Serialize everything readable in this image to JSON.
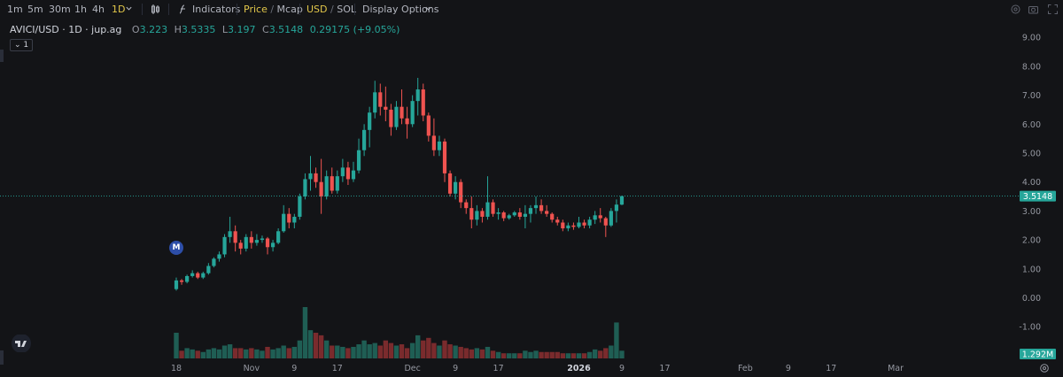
{
  "toolbar": {
    "intervals": [
      "1m",
      "5m",
      "30m",
      "1h",
      "4h",
      "1D"
    ],
    "active_interval": "1D",
    "indicators": "Indicators",
    "price": "Price",
    "mcap": "Mcap",
    "usd": "USD",
    "sol": "SOL",
    "display_options": "Display Options"
  },
  "legend": {
    "symbol": "AVICI/USD · 1D · jup.ag",
    "o_label": "O",
    "o": "3.223",
    "h_label": "H",
    "h": "3.5335",
    "l_label": "L",
    "l": "3.197",
    "c_label": "C",
    "c": "3.5148",
    "change": "0.29175 (+9.05%)",
    "collapse": "1"
  },
  "marker": "M",
  "colors": {
    "up": "#26a69a",
    "down": "#ef5350",
    "vol_up": "#1f5e54",
    "vol_down": "#7a2b2d",
    "bg": "#131417"
  },
  "chart_data": {
    "type": "candlestick",
    "title": "AVICI/USD · 1D · jup.ag",
    "y_ticks": [
      "9.00",
      "8.00",
      "7.00",
      "6.00",
      "5.00",
      "4.00",
      "3.00",
      "2.00",
      "1.00",
      "0.00",
      "-1.00"
    ],
    "ylim": [
      -2,
      10
    ],
    "last_price": "3.5148",
    "volume_label": "1.292M",
    "x_ticks": [
      {
        "label": "18",
        "t": 0
      },
      {
        "label": "Nov",
        "t": 14
      },
      {
        "label": "9",
        "t": 22
      },
      {
        "label": "17",
        "t": 30
      },
      {
        "label": "Dec",
        "t": 44
      },
      {
        "label": "9",
        "t": 52
      },
      {
        "label": "17",
        "t": 60
      },
      {
        "label": "2026",
        "t": 75
      },
      {
        "label": "9",
        "t": 83
      },
      {
        "label": "17",
        "t": 91
      },
      {
        "label": "Feb",
        "t": 106
      },
      {
        "label": "9",
        "t": 114
      },
      {
        "label": "17",
        "t": 122
      },
      {
        "label": "Mar",
        "t": 134
      }
    ],
    "candles": [
      [
        0.3,
        0.7,
        0.25,
        0.6,
        1.0
      ],
      [
        0.6,
        0.65,
        0.45,
        0.55,
        0.3
      ],
      [
        0.55,
        0.8,
        0.5,
        0.75,
        0.4
      ],
      [
        0.75,
        0.95,
        0.7,
        0.85,
        0.35
      ],
      [
        0.85,
        0.9,
        0.65,
        0.7,
        0.3
      ],
      [
        0.7,
        0.9,
        0.65,
        0.85,
        0.25
      ],
      [
        0.85,
        1.2,
        0.8,
        1.1,
        0.35
      ],
      [
        1.1,
        1.4,
        1.05,
        1.35,
        0.4
      ],
      [
        1.35,
        1.6,
        1.25,
        1.5,
        0.35
      ],
      [
        1.5,
        2.2,
        1.4,
        2.1,
        0.5
      ],
      [
        2.1,
        2.8,
        1.9,
        2.3,
        0.55
      ],
      [
        2.3,
        2.5,
        1.6,
        1.9,
        0.4
      ],
      [
        1.9,
        2.0,
        1.5,
        1.7,
        0.4
      ],
      [
        1.7,
        2.2,
        1.6,
        2.1,
        0.35
      ],
      [
        2.1,
        2.3,
        1.7,
        1.9,
        0.4
      ],
      [
        1.9,
        2.2,
        1.8,
        2.0,
        0.35
      ],
      [
        2.0,
        2.15,
        1.9,
        2.05,
        0.3
      ],
      [
        2.05,
        2.1,
        1.5,
        1.75,
        0.45
      ],
      [
        1.75,
        2.0,
        1.6,
        1.9,
        0.35
      ],
      [
        1.9,
        2.4,
        1.85,
        2.3,
        0.4
      ],
      [
        2.3,
        3.2,
        2.25,
        2.9,
        0.5
      ],
      [
        2.9,
        3.1,
        2.4,
        2.6,
        0.4
      ],
      [
        2.6,
        2.9,
        2.4,
        2.8,
        0.45
      ],
      [
        2.8,
        3.6,
        2.7,
        3.5,
        0.7
      ],
      [
        3.5,
        4.3,
        3.4,
        4.1,
        2.0
      ],
      [
        4.1,
        4.9,
        3.7,
        4.3,
        1.1
      ],
      [
        4.3,
        4.5,
        3.8,
        4.0,
        1.0
      ],
      [
        4.0,
        4.8,
        2.9,
        3.5,
        0.9
      ],
      [
        3.5,
        4.4,
        3.4,
        4.2,
        0.7
      ],
      [
        4.2,
        4.5,
        3.6,
        3.7,
        0.5
      ],
      [
        3.7,
        4.4,
        3.6,
        4.2,
        0.5
      ],
      [
        4.2,
        4.8,
        4.0,
        4.5,
        0.45
      ],
      [
        4.5,
        4.7,
        3.9,
        4.1,
        0.4
      ],
      [
        4.1,
        4.7,
        4.0,
        4.4,
        0.45
      ],
      [
        4.4,
        5.5,
        4.3,
        5.1,
        0.55
      ],
      [
        5.1,
        6.0,
        4.9,
        5.8,
        0.7
      ],
      [
        5.8,
        6.6,
        5.2,
        6.4,
        0.55
      ],
      [
        6.4,
        7.5,
        6.2,
        7.1,
        0.6
      ],
      [
        7.1,
        7.4,
        6.3,
        6.6,
        0.5
      ],
      [
        6.6,
        7.3,
        6.1,
        6.5,
        0.7
      ],
      [
        6.5,
        6.7,
        5.6,
        5.9,
        0.6
      ],
      [
        5.9,
        6.8,
        5.8,
        6.6,
        0.5
      ],
      [
        6.6,
        7.2,
        6.0,
        6.2,
        0.55
      ],
      [
        6.2,
        6.6,
        5.5,
        6.0,
        0.4
      ],
      [
        6.0,
        7.0,
        5.9,
        6.8,
        0.6
      ],
      [
        6.8,
        7.6,
        6.3,
        7.2,
        0.9
      ],
      [
        7.2,
        7.4,
        6.1,
        6.3,
        0.7
      ],
      [
        6.3,
        6.4,
        5.4,
        5.6,
        0.8
      ],
      [
        5.6,
        6.2,
        4.9,
        5.1,
        0.6
      ],
      [
        5.1,
        5.6,
        4.9,
        5.4,
        0.5
      ],
      [
        5.4,
        5.5,
        4.0,
        4.3,
        0.7
      ],
      [
        4.3,
        4.4,
        3.5,
        3.6,
        0.55
      ],
      [
        3.6,
        4.2,
        3.4,
        4.0,
        0.5
      ],
      [
        4.0,
        4.1,
        3.1,
        3.3,
        0.45
      ],
      [
        3.3,
        3.4,
        2.9,
        3.1,
        0.4
      ],
      [
        3.1,
        3.5,
        2.4,
        2.7,
        0.35
      ],
      [
        2.7,
        3.2,
        2.5,
        3.0,
        0.4
      ],
      [
        3.0,
        3.1,
        2.6,
        2.8,
        0.35
      ],
      [
        2.8,
        4.2,
        2.7,
        3.3,
        0.45
      ],
      [
        3.3,
        3.4,
        2.8,
        2.9,
        0.3
      ],
      [
        2.9,
        3.1,
        2.7,
        2.95,
        0.25
      ],
      [
        2.95,
        3.0,
        2.65,
        2.75,
        0.2
      ],
      [
        2.75,
        2.9,
        2.7,
        2.85,
        0.2
      ],
      [
        2.85,
        3.0,
        2.8,
        2.95,
        0.2
      ],
      [
        2.95,
        3.1,
        2.7,
        2.8,
        0.2
      ],
      [
        2.8,
        3.2,
        2.4,
        2.9,
        0.3
      ],
      [
        2.9,
        3.2,
        2.6,
        3.1,
        0.25
      ],
      [
        3.1,
        3.5,
        2.9,
        3.2,
        0.3
      ],
      [
        3.2,
        3.4,
        2.9,
        3.0,
        0.25
      ],
      [
        3.0,
        3.2,
        2.8,
        2.9,
        0.25
      ],
      [
        2.9,
        2.95,
        2.6,
        2.7,
        0.25
      ],
      [
        2.7,
        2.8,
        2.5,
        2.6,
        0.25
      ],
      [
        2.6,
        2.7,
        2.3,
        2.4,
        0.2
      ],
      [
        2.4,
        2.6,
        2.3,
        2.5,
        0.2
      ],
      [
        2.5,
        2.6,
        2.35,
        2.45,
        0.2
      ],
      [
        2.45,
        2.8,
        2.4,
        2.6,
        0.2
      ],
      [
        2.6,
        2.7,
        2.4,
        2.5,
        0.2
      ],
      [
        2.5,
        2.8,
        2.4,
        2.7,
        0.25
      ],
      [
        2.7,
        3.0,
        2.55,
        2.85,
        0.35
      ],
      [
        2.85,
        3.1,
        2.6,
        2.75,
        0.3
      ],
      [
        2.75,
        2.8,
        2.1,
        2.5,
        0.4
      ],
      [
        2.5,
        3.1,
        2.45,
        3.0,
        0.5
      ],
      [
        3.0,
        3.4,
        2.6,
        3.22,
        1.4
      ],
      [
        3.22,
        3.53,
        3.2,
        3.51,
        0.3
      ]
    ]
  }
}
